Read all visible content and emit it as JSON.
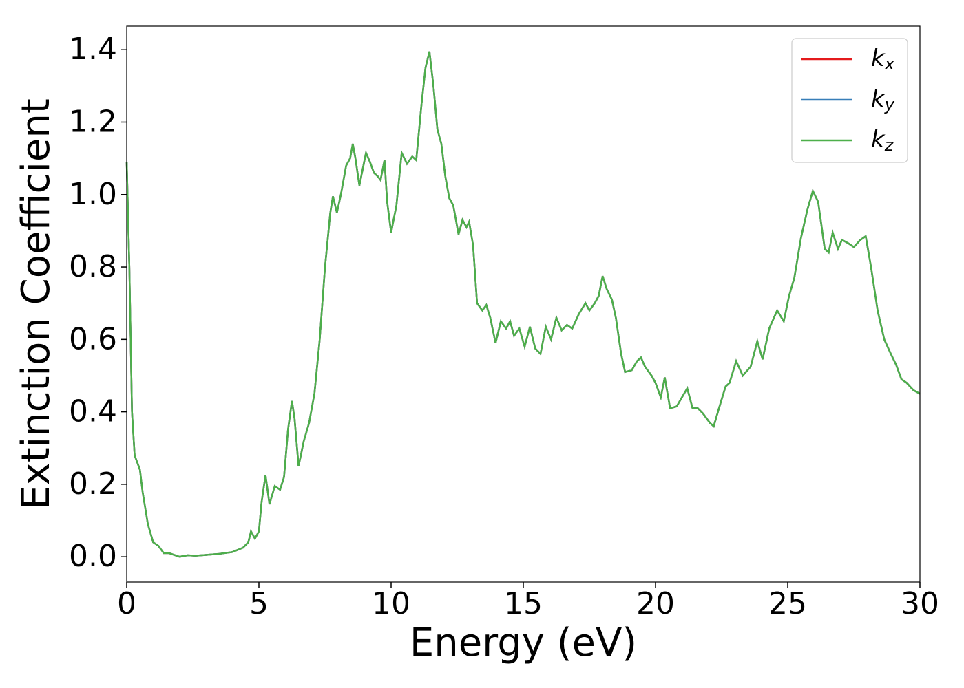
{
  "chart_data": {
    "type": "line",
    "xlabel": "Energy (eV)",
    "ylabel": "Extinction Coefficient",
    "xlim": [
      0,
      30
    ],
    "ylim": [
      -0.07,
      1.465
    ],
    "xticks": [
      0,
      5,
      10,
      15,
      20,
      25,
      30
    ],
    "yticks": [
      {
        "value": 0,
        "label": "0.0"
      },
      0.2,
      0.4,
      0.6,
      0.8,
      {
        "value": 1,
        "label": "1.0"
      },
      1.2,
      1.4
    ],
    "legend": "upper right",
    "x": [
      0,
      0.1,
      0.2,
      0.3,
      0.5,
      0.6,
      0.8,
      1.0,
      1.2,
      1.4,
      1.6,
      1.8,
      2.0,
      2.3,
      2.6,
      3.0,
      3.5,
      4.0,
      4.4,
      4.6,
      4.7,
      4.85,
      5.0,
      5.1,
      5.25,
      5.4,
      5.5,
      5.6,
      5.8,
      5.95,
      6.1,
      6.25,
      6.35,
      6.5,
      6.7,
      6.9,
      7.1,
      7.3,
      7.5,
      7.7,
      7.8,
      7.95,
      8.1,
      8.3,
      8.45,
      8.55,
      8.65,
      8.8,
      9.05,
      9.2,
      9.35,
      9.5,
      9.6,
      9.75,
      9.85,
      10.0,
      10.2,
      10.4,
      10.6,
      10.8,
      10.95,
      11.15,
      11.3,
      11.45,
      11.6,
      11.75,
      11.9,
      12.05,
      12.2,
      12.35,
      12.55,
      12.7,
      12.85,
      12.95,
      13.1,
      13.25,
      13.45,
      13.6,
      13.75,
      13.95,
      14.15,
      14.35,
      14.5,
      14.65,
      14.85,
      15.05,
      15.25,
      15.45,
      15.65,
      15.85,
      16.05,
      16.25,
      16.45,
      16.65,
      16.85,
      17.1,
      17.35,
      17.5,
      17.7,
      17.85,
      18.0,
      18.15,
      18.35,
      18.5,
      18.7,
      18.85,
      19.1,
      19.3,
      19.45,
      19.6,
      19.85,
      20.0,
      20.2,
      20.35,
      20.55,
      20.8,
      21.0,
      21.2,
      21.4,
      21.6,
      21.8,
      22.05,
      22.2,
      22.4,
      22.65,
      22.8,
      23.05,
      23.3,
      23.6,
      23.85,
      24.05,
      24.3,
      24.6,
      24.85,
      25.05,
      25.25,
      25.5,
      25.75,
      25.95,
      26.15,
      26.4,
      26.55,
      26.7,
      26.9,
      27.05,
      27.3,
      27.5,
      27.75,
      27.95,
      28.15,
      28.4,
      28.65,
      28.9,
      29.1,
      29.3,
      29.5,
      29.75,
      30.0
    ],
    "series": [
      {
        "name": "kx",
        "color": "#e41a1c",
        "values": [
          1.09,
          0.8,
          0.4,
          0.28,
          0.24,
          0.18,
          0.09,
          0.04,
          0.03,
          0.01,
          0.01,
          0.005,
          0.0,
          0.004,
          0.003,
          0.005,
          0.008,
          0.013,
          0.025,
          0.04,
          0.07,
          0.05,
          0.07,
          0.15,
          0.225,
          0.145,
          0.17,
          0.195,
          0.185,
          0.22,
          0.35,
          0.43,
          0.38,
          0.25,
          0.32,
          0.37,
          0.45,
          0.6,
          0.8,
          0.95,
          0.995,
          0.95,
          1.0,
          1.08,
          1.1,
          1.14,
          1.1,
          1.025,
          1.115,
          1.09,
          1.06,
          1.05,
          1.04,
          1.095,
          0.98,
          0.895,
          0.97,
          1.115,
          1.085,
          1.105,
          1.095,
          1.25,
          1.35,
          1.395,
          1.3,
          1.18,
          1.14,
          1.05,
          0.99,
          0.97,
          0.89,
          0.93,
          0.91,
          0.925,
          0.86,
          0.7,
          0.68,
          0.695,
          0.66,
          0.59,
          0.65,
          0.63,
          0.65,
          0.61,
          0.63,
          0.58,
          0.635,
          0.575,
          0.56,
          0.635,
          0.6,
          0.66,
          0.625,
          0.64,
          0.63,
          0.67,
          0.7,
          0.68,
          0.7,
          0.72,
          0.775,
          0.74,
          0.71,
          0.66,
          0.56,
          0.51,
          0.515,
          0.54,
          0.55,
          0.525,
          0.5,
          0.48,
          0.44,
          0.495,
          0.41,
          0.415,
          0.44,
          0.465,
          0.41,
          0.41,
          0.395,
          0.37,
          0.36,
          0.41,
          0.47,
          0.48,
          0.54,
          0.5,
          0.525,
          0.595,
          0.545,
          0.63,
          0.68,
          0.65,
          0.72,
          0.77,
          0.88,
          0.96,
          1.01,
          0.98,
          0.85,
          0.84,
          0.895,
          0.85,
          0.875,
          0.865,
          0.855,
          0.875,
          0.885,
          0.8,
          0.68,
          0.6,
          0.56,
          0.53,
          0.49,
          0.48,
          0.46,
          0.45
        ]
      },
      {
        "name": "ky",
        "color": "#377eb8",
        "values": [
          1.09,
          0.8,
          0.4,
          0.28,
          0.24,
          0.18,
          0.09,
          0.04,
          0.03,
          0.01,
          0.01,
          0.005,
          0.0,
          0.004,
          0.003,
          0.005,
          0.008,
          0.013,
          0.025,
          0.04,
          0.07,
          0.05,
          0.07,
          0.15,
          0.225,
          0.145,
          0.17,
          0.195,
          0.185,
          0.22,
          0.35,
          0.43,
          0.38,
          0.25,
          0.32,
          0.37,
          0.45,
          0.6,
          0.8,
          0.95,
          0.995,
          0.95,
          1.0,
          1.08,
          1.1,
          1.14,
          1.1,
          1.025,
          1.115,
          1.09,
          1.06,
          1.05,
          1.04,
          1.095,
          0.98,
          0.895,
          0.97,
          1.115,
          1.085,
          1.105,
          1.095,
          1.25,
          1.35,
          1.395,
          1.3,
          1.18,
          1.14,
          1.05,
          0.99,
          0.97,
          0.89,
          0.93,
          0.91,
          0.925,
          0.86,
          0.7,
          0.68,
          0.695,
          0.66,
          0.59,
          0.65,
          0.63,
          0.65,
          0.61,
          0.63,
          0.58,
          0.635,
          0.575,
          0.56,
          0.635,
          0.6,
          0.66,
          0.625,
          0.64,
          0.63,
          0.67,
          0.7,
          0.68,
          0.7,
          0.72,
          0.775,
          0.74,
          0.71,
          0.66,
          0.56,
          0.51,
          0.515,
          0.54,
          0.55,
          0.525,
          0.5,
          0.48,
          0.44,
          0.495,
          0.41,
          0.415,
          0.44,
          0.465,
          0.41,
          0.41,
          0.395,
          0.37,
          0.36,
          0.41,
          0.47,
          0.48,
          0.54,
          0.5,
          0.525,
          0.595,
          0.545,
          0.63,
          0.68,
          0.65,
          0.72,
          0.77,
          0.88,
          0.96,
          1.01,
          0.98,
          0.85,
          0.84,
          0.895,
          0.85,
          0.875,
          0.865,
          0.855,
          0.875,
          0.885,
          0.8,
          0.68,
          0.6,
          0.56,
          0.53,
          0.49,
          0.48,
          0.46,
          0.45
        ]
      },
      {
        "name": "kz",
        "color": "#4daf4a",
        "values": [
          1.09,
          0.8,
          0.4,
          0.28,
          0.24,
          0.18,
          0.09,
          0.04,
          0.03,
          0.01,
          0.01,
          0.005,
          0.0,
          0.004,
          0.003,
          0.005,
          0.008,
          0.013,
          0.025,
          0.04,
          0.07,
          0.05,
          0.07,
          0.15,
          0.225,
          0.145,
          0.17,
          0.195,
          0.185,
          0.22,
          0.35,
          0.43,
          0.38,
          0.25,
          0.32,
          0.37,
          0.45,
          0.6,
          0.8,
          0.95,
          0.995,
          0.95,
          1.0,
          1.08,
          1.1,
          1.14,
          1.1,
          1.025,
          1.115,
          1.09,
          1.06,
          1.05,
          1.04,
          1.095,
          0.98,
          0.895,
          0.97,
          1.115,
          1.085,
          1.105,
          1.095,
          1.25,
          1.35,
          1.395,
          1.3,
          1.18,
          1.14,
          1.05,
          0.99,
          0.97,
          0.89,
          0.93,
          0.91,
          0.925,
          0.86,
          0.7,
          0.68,
          0.695,
          0.66,
          0.59,
          0.65,
          0.63,
          0.65,
          0.61,
          0.63,
          0.58,
          0.635,
          0.575,
          0.56,
          0.635,
          0.6,
          0.66,
          0.625,
          0.64,
          0.63,
          0.67,
          0.7,
          0.68,
          0.7,
          0.72,
          0.775,
          0.74,
          0.71,
          0.66,
          0.56,
          0.51,
          0.515,
          0.54,
          0.55,
          0.525,
          0.5,
          0.48,
          0.44,
          0.495,
          0.41,
          0.415,
          0.44,
          0.465,
          0.41,
          0.41,
          0.395,
          0.37,
          0.36,
          0.41,
          0.47,
          0.48,
          0.54,
          0.5,
          0.525,
          0.595,
          0.545,
          0.63,
          0.68,
          0.65,
          0.72,
          0.77,
          0.88,
          0.96,
          1.01,
          0.98,
          0.85,
          0.84,
          0.895,
          0.85,
          0.875,
          0.865,
          0.855,
          0.875,
          0.885,
          0.8,
          0.68,
          0.6,
          0.56,
          0.53,
          0.49,
          0.48,
          0.46,
          0.45
        ]
      }
    ]
  }
}
